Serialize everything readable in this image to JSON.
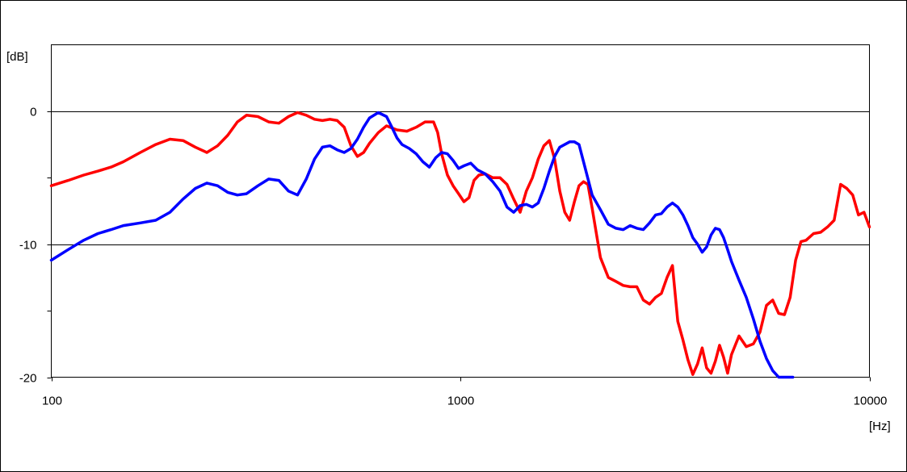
{
  "chart_data": {
    "type": "line",
    "title": "",
    "xlabel": "[Hz]",
    "ylabel": "[dB]",
    "x_scale": "log",
    "xlim": [
      100,
      10000
    ],
    "ylim": [
      -20,
      5
    ],
    "x_ticks": [
      100,
      1000,
      10000
    ],
    "x_tick_labels": [
      "100",
      "1000",
      "10000"
    ],
    "y_ticks": [
      0,
      -10,
      -20
    ],
    "y_tick_labels": [
      "0",
      "-10",
      "-20"
    ],
    "y_minor_ticks": [
      -5,
      -15
    ],
    "grid": "horizontal at major y ticks",
    "legend": "none",
    "series": [
      {
        "color": "#ff0000",
        "x": [
          100,
          110,
          120,
          130,
          140,
          150,
          165,
          180,
          195,
          210,
          225,
          240,
          255,
          270,
          285,
          300,
          320,
          340,
          360,
          380,
          400,
          420,
          440,
          460,
          480,
          500,
          520,
          540,
          560,
          580,
          600,
          630,
          660,
          700,
          740,
          780,
          820,
          860,
          880,
          900,
          930,
          960,
          990,
          1020,
          1050,
          1080,
          1110,
          1150,
          1200,
          1250,
          1300,
          1350,
          1400,
          1450,
          1500,
          1550,
          1600,
          1650,
          1700,
          1750,
          1800,
          1850,
          1900,
          1950,
          2000,
          2050,
          2100,
          2150,
          2200,
          2300,
          2400,
          2500,
          2600,
          2700,
          2800,
          2900,
          3000,
          3100,
          3200,
          3300,
          3400,
          3500,
          3600,
          3700,
          3800,
          3900,
          4000,
          4100,
          4200,
          4300,
          4400,
          4500,
          4600,
          4800,
          5000,
          5200,
          5400,
          5600,
          5800,
          6000,
          6200,
          6400,
          6600,
          6800,
          7000,
          7300,
          7600,
          7900,
          8200,
          8500,
          8800,
          9100,
          9400,
          9700,
          10000
        ],
        "y": [
          -5.6,
          -5.2,
          -4.8,
          -4.5,
          -4.2,
          -3.8,
          -3.1,
          -2.5,
          -2.1,
          -2.2,
          -2.7,
          -3.1,
          -2.6,
          -1.8,
          -0.8,
          -0.3,
          -0.4,
          -0.8,
          -0.9,
          -0.4,
          -0.1,
          -0.3,
          -0.6,
          -0.7,
          -0.6,
          -0.7,
          -1.2,
          -2.6,
          -3.4,
          -3.1,
          -2.4,
          -1.6,
          -1.1,
          -1.4,
          -1.5,
          -1.2,
          -0.8,
          -0.8,
          -1.6,
          -3.2,
          -4.8,
          -5.6,
          -6.2,
          -6.8,
          -6.5,
          -5.2,
          -4.8,
          -4.7,
          -5.0,
          -5.0,
          -5.5,
          -6.6,
          -7.6,
          -6.0,
          -5.0,
          -3.6,
          -2.6,
          -2.2,
          -3.6,
          -6.0,
          -7.6,
          -8.2,
          -6.8,
          -5.6,
          -5.3,
          -5.5,
          -7.3,
          -9.2,
          -11.0,
          -12.5,
          -12.8,
          -13.1,
          -13.2,
          -13.2,
          -14.2,
          -14.5,
          -14.0,
          -13.7,
          -12.5,
          -11.6,
          -15.8,
          -17.2,
          -18.7,
          -19.8,
          -19.0,
          -17.8,
          -19.3,
          -19.7,
          -18.8,
          -17.6,
          -18.5,
          -19.7,
          -18.3,
          -16.9,
          -17.7,
          -17.5,
          -16.6,
          -14.6,
          -14.2,
          -15.2,
          -15.3,
          -14.0,
          -11.2,
          -9.8,
          -9.7,
          -9.2,
          -9.1,
          -8.7,
          -8.2,
          -5.5,
          -5.8,
          -6.3,
          -7.8,
          -7.6,
          -8.7
        ]
      },
      {
        "color": "#0000ff",
        "x": [
          100,
          110,
          120,
          130,
          140,
          150,
          165,
          180,
          195,
          210,
          225,
          240,
          255,
          270,
          285,
          300,
          320,
          340,
          360,
          380,
          400,
          420,
          440,
          460,
          480,
          500,
          520,
          540,
          560,
          580,
          600,
          630,
          660,
          680,
          700,
          720,
          750,
          780,
          810,
          840,
          870,
          900,
          930,
          960,
          990,
          1020,
          1060,
          1100,
          1150,
          1200,
          1250,
          1300,
          1350,
          1400,
          1450,
          1500,
          1550,
          1600,
          1650,
          1700,
          1750,
          1800,
          1850,
          1900,
          1950,
          2000,
          2100,
          2200,
          2300,
          2400,
          2500,
          2600,
          2700,
          2800,
          2900,
          3000,
          3100,
          3200,
          3300,
          3400,
          3500,
          3600,
          3700,
          3800,
          3900,
          4000,
          4100,
          4200,
          4300,
          4400,
          4500,
          4600,
          4800,
          5000,
          5200,
          5400,
          5600,
          5800,
          6000,
          6200,
          6400,
          6500
        ],
        "y": [
          -11.2,
          -10.4,
          -9.7,
          -9.2,
          -8.9,
          -8.6,
          -8.4,
          -8.2,
          -7.6,
          -6.6,
          -5.8,
          -5.4,
          -5.6,
          -6.1,
          -6.3,
          -6.2,
          -5.6,
          -5.1,
          -5.2,
          -6.0,
          -6.3,
          -5.1,
          -3.6,
          -2.7,
          -2.6,
          -2.9,
          -3.1,
          -2.8,
          -2.1,
          -1.2,
          -0.5,
          -0.1,
          -0.4,
          -1.2,
          -2.0,
          -2.5,
          -2.8,
          -3.2,
          -3.8,
          -4.2,
          -3.5,
          -3.1,
          -3.2,
          -3.7,
          -4.3,
          -4.1,
          -3.9,
          -4.4,
          -4.7,
          -5.3,
          -6.0,
          -7.2,
          -7.6,
          -7.1,
          -7.0,
          -7.2,
          -6.9,
          -5.8,
          -4.5,
          -3.4,
          -2.7,
          -2.5,
          -2.3,
          -2.3,
          -2.5,
          -3.8,
          -6.3,
          -7.4,
          -8.5,
          -8.8,
          -8.9,
          -8.6,
          -8.8,
          -8.9,
          -8.4,
          -7.8,
          -7.7,
          -7.2,
          -6.9,
          -7.2,
          -7.8,
          -8.6,
          -9.5,
          -10.0,
          -10.6,
          -10.2,
          -9.3,
          -8.8,
          -8.9,
          -9.5,
          -10.4,
          -11.3,
          -12.7,
          -14.0,
          -15.6,
          -17.3,
          -18.6,
          -19.5,
          -20.0,
          -20.0,
          -20.0,
          -20.0
        ]
      }
    ]
  }
}
